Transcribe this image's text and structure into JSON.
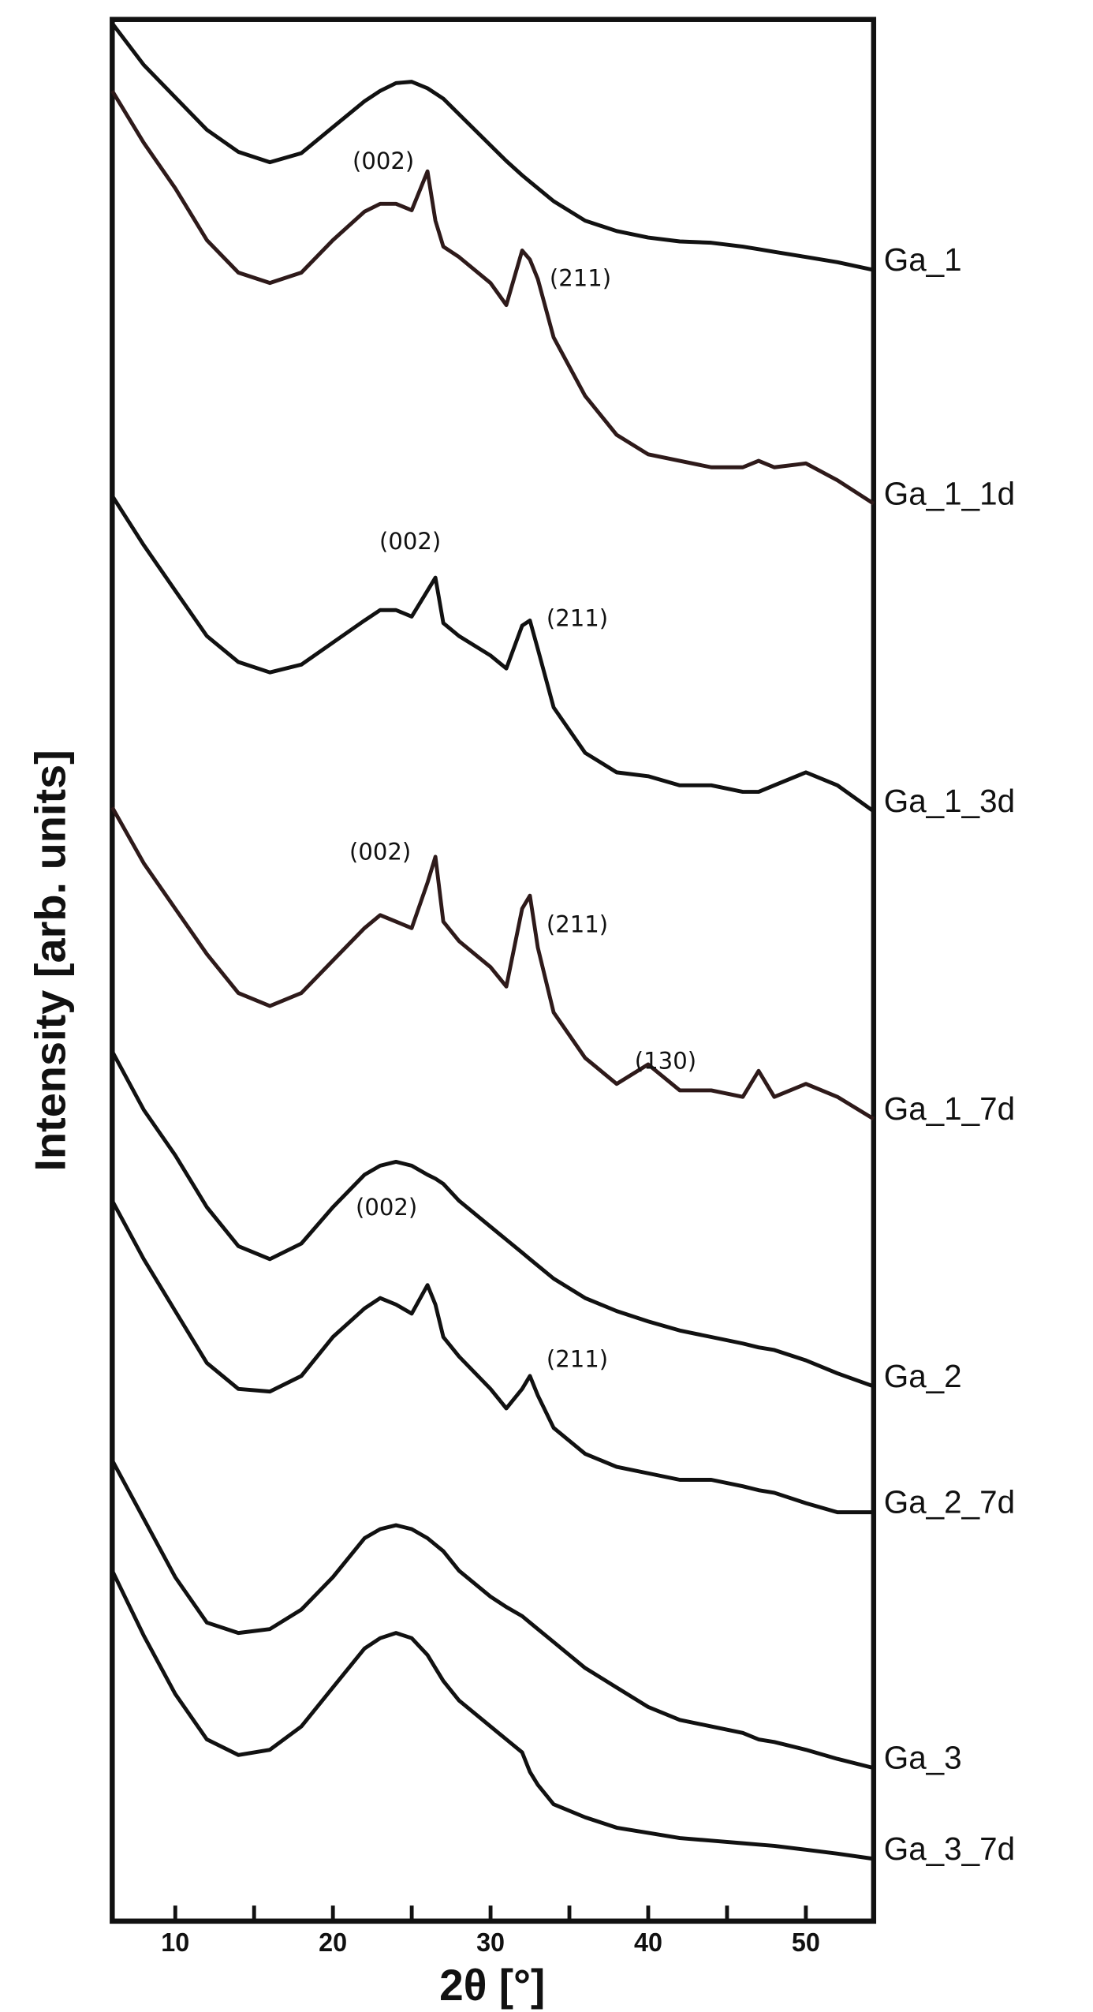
{
  "chart_data": {
    "type": "line",
    "x_label": "2θ [°]",
    "y_label": "Intensity [arb. units]",
    "xlim": [
      6,
      54.3
    ],
    "ylim": [
      3.7,
      150.2
    ],
    "xticks": [
      10,
      20,
      30,
      40,
      50
    ],
    "xticks_minor": [
      15,
      25,
      35,
      45
    ],
    "x": [
      6,
      8,
      10,
      12,
      14,
      16,
      18,
      20,
      22,
      23,
      24,
      25,
      26,
      26.5,
      27,
      28,
      30,
      31,
      32,
      32.5,
      33,
      34,
      36,
      38,
      40,
      42,
      44,
      46,
      47,
      48,
      50,
      52,
      54.3
    ],
    "series": [
      {
        "name": "Ga_1",
        "color": "#111111",
        "values": [
          149.9,
          146.7,
          144.2,
          141.7,
          140.0,
          139.2,
          139.9,
          141.9,
          143.9,
          144.7,
          145.3,
          145.4,
          144.9,
          144.5,
          144.1,
          142.9,
          140.5,
          139.3,
          138.2,
          137.7,
          137.2,
          136.2,
          134.7,
          133.9,
          133.4,
          133.1,
          133.0,
          132.7,
          132.5,
          132.3,
          131.9,
          131.5,
          130.9
        ]
      },
      {
        "name": "Ga_1_1d",
        "color": "#2e1a1a",
        "values": [
          144.7,
          140.7,
          137.2,
          133.2,
          130.7,
          129.9,
          130.7,
          133.2,
          135.4,
          136.0,
          136.0,
          135.5,
          138.5,
          134.7,
          132.7,
          131.9,
          129.9,
          128.2,
          132.4,
          131.7,
          130.2,
          125.7,
          121.2,
          118.2,
          116.7,
          116.2,
          115.7,
          115.7,
          116.2,
          115.7,
          116.0,
          114.7,
          112.9
        ]
      },
      {
        "name": "Ga_1_3d",
        "color": "#111111",
        "values": [
          113.5,
          109.7,
          106.2,
          102.7,
          100.7,
          99.9,
          100.5,
          102.2,
          103.9,
          104.7,
          104.7,
          104.2,
          106.2,
          107.2,
          103.7,
          102.7,
          101.2,
          100.2,
          103.5,
          103.9,
          101.7,
          97.2,
          93.7,
          92.2,
          91.9,
          91.2,
          91.2,
          90.7,
          90.7,
          91.2,
          92.2,
          91.2,
          89.2
        ]
      },
      {
        "name": "Ga_1_7d",
        "color": "#2e1a1a",
        "values": [
          89.5,
          85.2,
          81.7,
          78.2,
          75.2,
          74.2,
          75.2,
          77.7,
          80.2,
          81.2,
          80.7,
          80.2,
          83.7,
          85.7,
          80.7,
          79.2,
          77.2,
          75.7,
          81.7,
          82.7,
          78.7,
          73.7,
          70.2,
          68.2,
          69.7,
          67.7,
          67.7,
          67.2,
          69.2,
          67.2,
          68.2,
          67.2,
          65.5
        ]
      },
      {
        "name": "Ga_2",
        "color": "#111111",
        "values": [
          70.7,
          66.2,
          62.7,
          58.7,
          55.7,
          54.7,
          55.9,
          58.7,
          61.2,
          61.9,
          62.2,
          61.9,
          61.2,
          60.9,
          60.5,
          59.2,
          57.2,
          56.2,
          55.2,
          54.7,
          54.2,
          53.2,
          51.7,
          50.7,
          49.9,
          49.2,
          48.7,
          48.2,
          47.9,
          47.7,
          46.9,
          45.9,
          44.9
        ]
      },
      {
        "name": "Ga_2_7d",
        "color": "#111111",
        "values": [
          59.2,
          54.7,
          50.7,
          46.7,
          44.7,
          44.5,
          45.7,
          48.7,
          50.9,
          51.7,
          51.2,
          50.5,
          52.7,
          51.2,
          48.7,
          47.2,
          44.7,
          43.2,
          44.7,
          45.7,
          44.2,
          41.7,
          39.7,
          38.7,
          38.2,
          37.7,
          37.7,
          37.2,
          36.9,
          36.7,
          35.9,
          35.2,
          35.2
        ]
      },
      {
        "name": "Ga_3",
        "color": "#111111",
        "values": [
          39.2,
          34.7,
          30.2,
          26.7,
          25.9,
          26.2,
          27.7,
          30.2,
          33.2,
          33.9,
          34.2,
          33.9,
          33.2,
          32.7,
          32.2,
          30.7,
          28.7,
          27.9,
          27.2,
          26.7,
          26.2,
          25.2,
          23.2,
          21.7,
          20.2,
          19.2,
          18.7,
          18.2,
          17.7,
          17.5,
          16.9,
          16.2,
          15.5
        ]
      },
      {
        "name": "Ga_3_7d",
        "color": "#111111",
        "values": [
          30.7,
          25.7,
          21.2,
          17.7,
          16.5,
          16.9,
          18.7,
          21.7,
          24.7,
          25.5,
          25.9,
          25.5,
          24.2,
          23.2,
          22.2,
          20.7,
          18.7,
          17.7,
          16.7,
          15.2,
          14.2,
          12.7,
          11.7,
          10.9,
          10.5,
          10.1,
          9.9,
          9.7,
          9.6,
          9.5,
          9.2,
          8.9,
          8.5
        ]
      }
    ],
    "annotations": [
      {
        "text": "(002)",
        "x": 23.2,
        "y": 139.2
      },
      {
        "text": "(211)",
        "x": 35.7,
        "y": 130.2
      },
      {
        "text": "(002)",
        "x": 24.9,
        "y": 109.9
      },
      {
        "text": "(211)",
        "x": 35.5,
        "y": 104.0
      },
      {
        "text": "(002)",
        "x": 23.0,
        "y": 86.0
      },
      {
        "text": "(211)",
        "x": 35.5,
        "y": 80.4
      },
      {
        "text": "(130)",
        "x": 41.1,
        "y": 69.9
      },
      {
        "text": "(002)",
        "x": 23.4,
        "y": 58.6
      },
      {
        "text": "(211)",
        "x": 35.5,
        "y": 46.9
      }
    ]
  }
}
